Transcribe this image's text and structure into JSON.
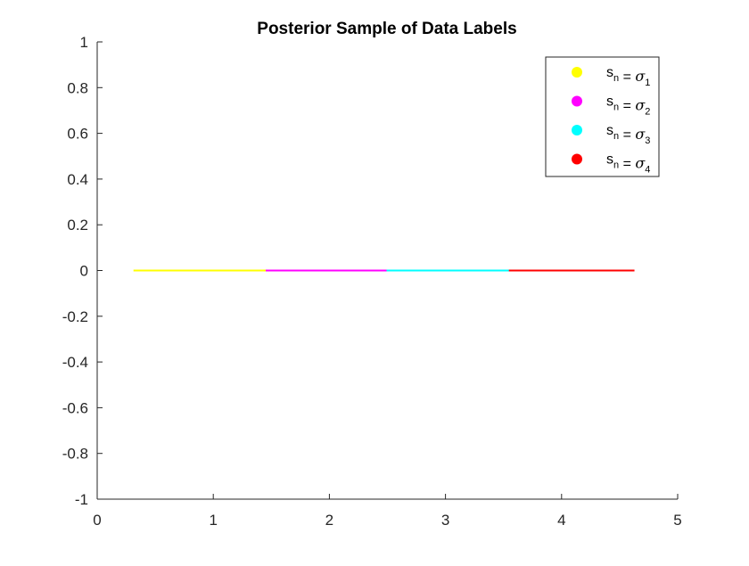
{
  "chart_data": {
    "type": "scatter",
    "title": "Posterior Sample of Data Labels",
    "xlabel": "",
    "ylabel": "",
    "xlim": [
      0,
      5
    ],
    "ylim": [
      -1,
      1
    ],
    "xticks": [
      "0",
      "1",
      "2",
      "3",
      "4",
      "5"
    ],
    "yticks": [
      "1",
      "0.8",
      "0.6",
      "0.4",
      "0.2",
      "0",
      "-0.2",
      "-0.4",
      "-0.6",
      "-0.8",
      "-1"
    ],
    "grid": false,
    "legend_position": "top-right",
    "series": [
      {
        "name": "s_n = σ_1",
        "label_base": "s",
        "label_sub": "n",
        "label_eq": " = ",
        "label_sym": "σ",
        "label_idx": "1",
        "color": "#ffff00",
        "x_range": [
          0.32,
          1.46
        ],
        "y": 0
      },
      {
        "name": "s_n = σ_2",
        "label_base": "s",
        "label_sub": "n",
        "label_eq": " = ",
        "label_sym": "σ",
        "label_idx": "2",
        "color": "#ff00ff",
        "x_range": [
          1.46,
          2.5
        ],
        "y": 0
      },
      {
        "name": "s_n = σ_3",
        "label_base": "s",
        "label_sub": "n",
        "label_eq": " = ",
        "label_sym": "σ",
        "label_idx": "3",
        "color": "#00ffff",
        "x_range": [
          2.5,
          3.55
        ],
        "y": 0
      },
      {
        "name": "s_n = σ_4",
        "label_base": "s",
        "label_sub": "n",
        "label_eq": " = ",
        "label_sym": "σ",
        "label_idx": "4",
        "color": "#ff0000",
        "x_range": [
          3.55,
          4.62
        ],
        "y": 0
      }
    ]
  }
}
